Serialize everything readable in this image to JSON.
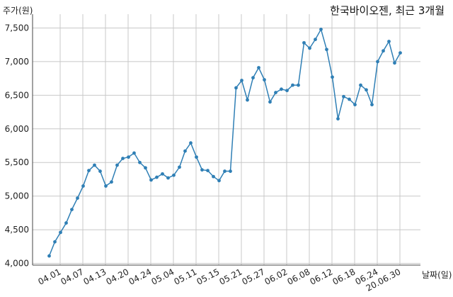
{
  "chart_data": {
    "type": "line",
    "title": "한국바이오젠, 최근 3개월",
    "ylabel": "주가(원)",
    "xlabel": "날짜(일)",
    "ylim": [
      4000,
      7600
    ],
    "yticks": [
      4000,
      4500,
      5000,
      5500,
      6000,
      6500,
      7000,
      7500
    ],
    "ytick_labels": [
      "4,000",
      "4,500",
      "5,000",
      "5,500",
      "6,000",
      "6,500",
      "7,000",
      "7,500"
    ],
    "xtick_labels": [
      "04.01",
      "04.07",
      "04.13",
      "04.20",
      "04.24",
      "05.04",
      "05.11",
      "05.15",
      "05.21",
      "05.27",
      "06.02",
      "06.08",
      "06.12",
      "06.18",
      "06.24",
      "20.06.30"
    ],
    "grid": true,
    "color": "#2f7fb5",
    "series": [
      {
        "values": [
          4110,
          4320,
          4460,
          4600,
          4800,
          4970,
          5150,
          5380,
          5460,
          5370,
          5150,
          5210,
          5460,
          5560,
          5580,
          5640,
          5500,
          5420,
          5240,
          5280,
          5330,
          5270,
          5310,
          5430,
          5670,
          5790,
          5580,
          5390,
          5380,
          5290,
          5230,
          5370,
          5370,
          6610,
          6720,
          6430,
          6760,
          6910,
          6730,
          6400,
          6540,
          6590,
          6570,
          6650,
          6650,
          7280,
          7200,
          7330,
          7480,
          7180,
          6770,
          6150,
          6480,
          6440,
          6360,
          6650,
          6580,
          6360,
          7000,
          7160,
          7300,
          6980,
          7130
        ]
      }
    ]
  }
}
